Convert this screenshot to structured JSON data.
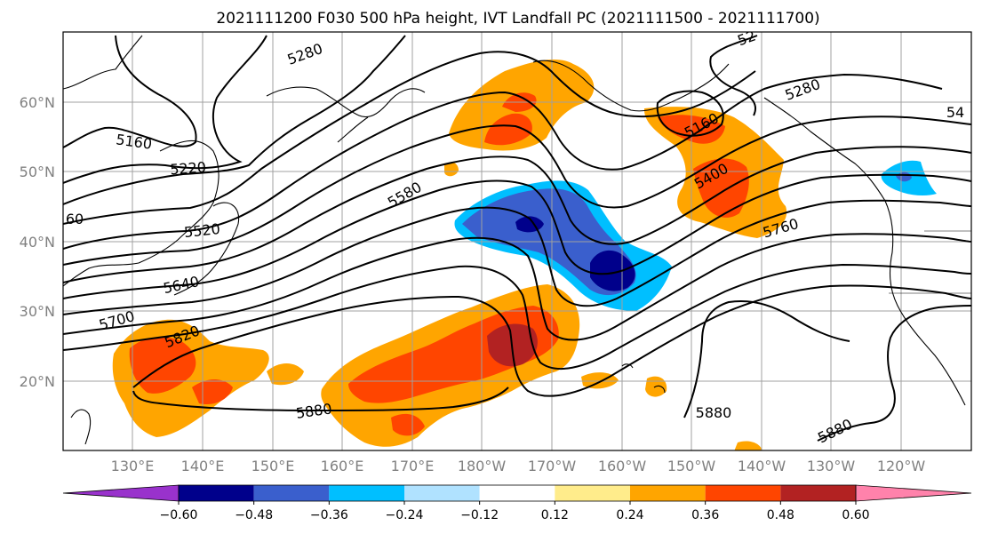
{
  "title": "2021111200 F030 500 hPa height, IVT Landfall PC (2021111500 - 2021111700)",
  "lat_ticks": [
    "60°N",
    "50°N",
    "40°N",
    "30°N",
    "20°N"
  ],
  "lon_ticks": [
    "130°E",
    "140°E",
    "150°E",
    "160°E",
    "170°E",
    "180°W",
    "170°W",
    "160°W",
    "150°W",
    "140°W",
    "130°W",
    "120°W"
  ],
  "colorbar": {
    "labels": [
      "−0.60",
      "−0.48",
      "−0.36",
      "−0.24",
      "−0.12",
      "0.12",
      "0.24",
      "0.36",
      "0.48",
      "0.60"
    ],
    "colors": [
      "#9932cc",
      "#00008b",
      "#3a5fcd",
      "#00bfff",
      "#b0e2ff",
      "#ffffff",
      "#ffec8b",
      "#ffa500",
      "#ff4500",
      "#b22222",
      "#ff82ab"
    ]
  },
  "contour_labels": [
    "5160",
    "5220",
    "5280",
    "5280",
    "5160",
    "5400",
    "5580",
    "5520",
    "5640",
    "5700",
    "5820",
    "5880",
    "5880",
    "5880",
    "5760",
    "60",
    "52",
    "54"
  ]
}
